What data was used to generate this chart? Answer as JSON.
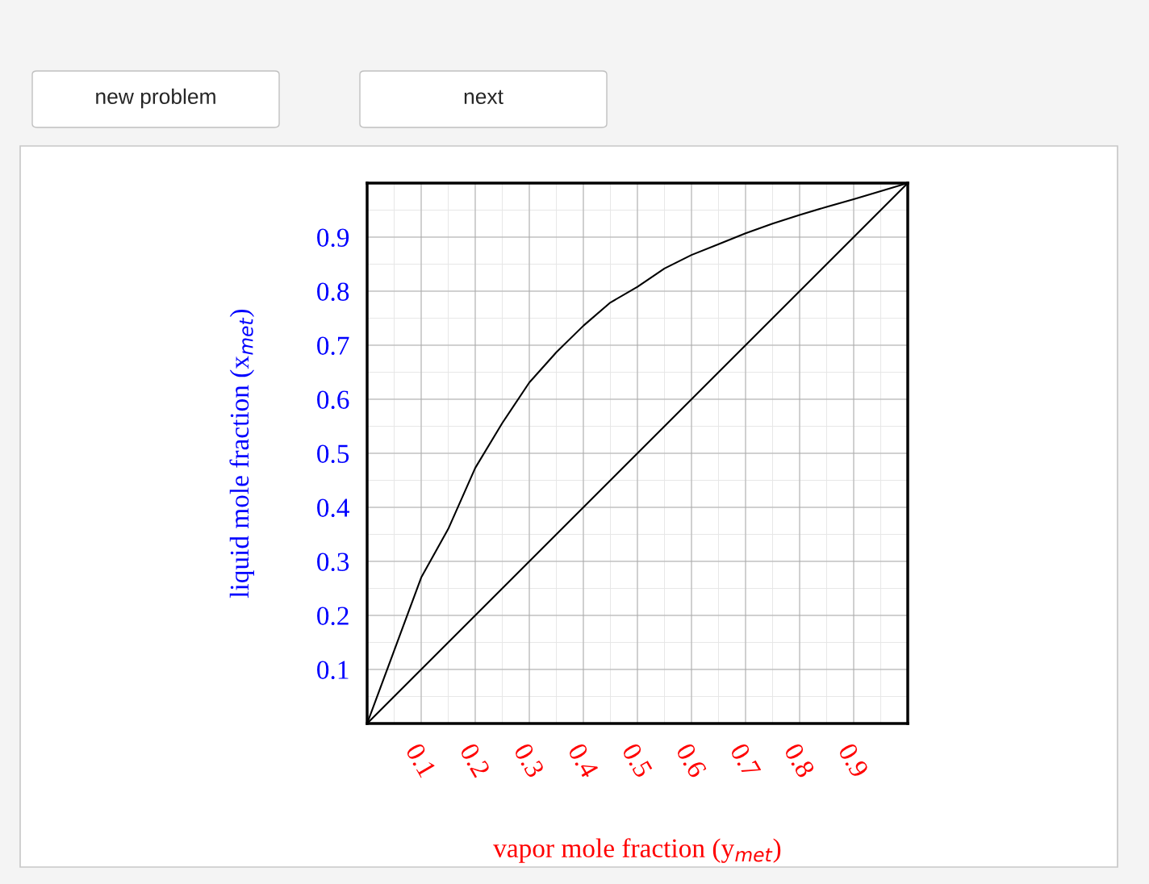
{
  "chart_data": {
    "type": "line",
    "xlabel": "vapor mole fraction (y$_{met}$)",
    "ylabel": "liquid mole fraction (x$_{met}$)",
    "annotations": [
      "new problem",
      "next"
    ],
    "series": [
      {
        "color": "#000000",
        "x": [
          0,
          0.05,
          0.1,
          0.15,
          0.2,
          0.25,
          0.3,
          0.35,
          0.4,
          0.45,
          0.5,
          0.55,
          0.6,
          0.65,
          0.7,
          0.75,
          0.8,
          0.85,
          0.9,
          0.95,
          1.0
        ],
        "values": [
          0,
          0.135,
          0.27,
          0.36,
          0.473,
          0.556,
          0.631,
          0.687,
          0.736,
          0.779,
          0.808,
          0.842,
          0.867,
          0.887,
          0.907,
          0.925,
          0.941,
          0.956,
          0.97,
          0.985,
          1.0
        ]
      },
      {
        "color": "#000000",
        "x": [
          0,
          1
        ],
        "values": [
          0,
          1
        ]
      }
    ],
    "xlim": [
      0,
      1
    ],
    "ylim": [
      0,
      1
    ],
    "xticks": [
      0.1,
      0.2,
      0.3,
      0.4,
      0.5,
      0.6,
      0.7,
      0.8,
      0.9
    ],
    "yticks": [
      0.1,
      0.2,
      0.3,
      0.4,
      0.5,
      0.6,
      0.7,
      0.8,
      0.9
    ],
    "grid": true
  }
}
